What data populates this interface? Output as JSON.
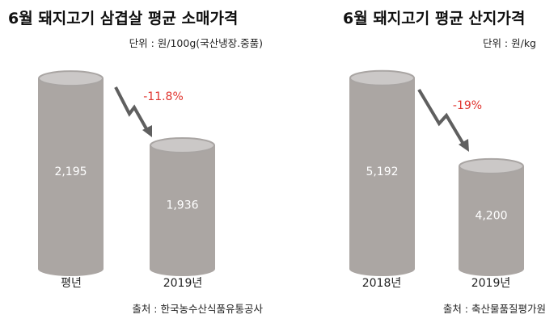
{
  "colors": {
    "cylinder_body": "#aba6a3",
    "cylinder_top": "#cbc8c7",
    "arrow": "#5f5f5f",
    "change_text": "#e0352f"
  },
  "chart_data": [
    {
      "type": "bar",
      "style": "cylinder",
      "title": "6월 돼지고기 삼겹살 평균 소매가격",
      "unit": "단위 : 원/100g(국산냉장.중품)",
      "categories": [
        "평년",
        "2019년"
      ],
      "values": [
        2195,
        1936
      ],
      "value_labels": [
        "2,195",
        "1,936"
      ],
      "change_label": "-11.8%",
      "source": "출처 : 한국농수산식품유통공사",
      "grid": false
    },
    {
      "type": "bar",
      "style": "cylinder",
      "title": "6월 돼지고기 평균 산지가격",
      "unit": "단위 : 원/kg",
      "categories": [
        "2018년",
        "2019년"
      ],
      "values": [
        5192,
        4200
      ],
      "value_labels": [
        "5,192",
        "4,200"
      ],
      "change_label": "-19%",
      "source": "출처 : 축산물품질평가원",
      "grid": false
    }
  ]
}
